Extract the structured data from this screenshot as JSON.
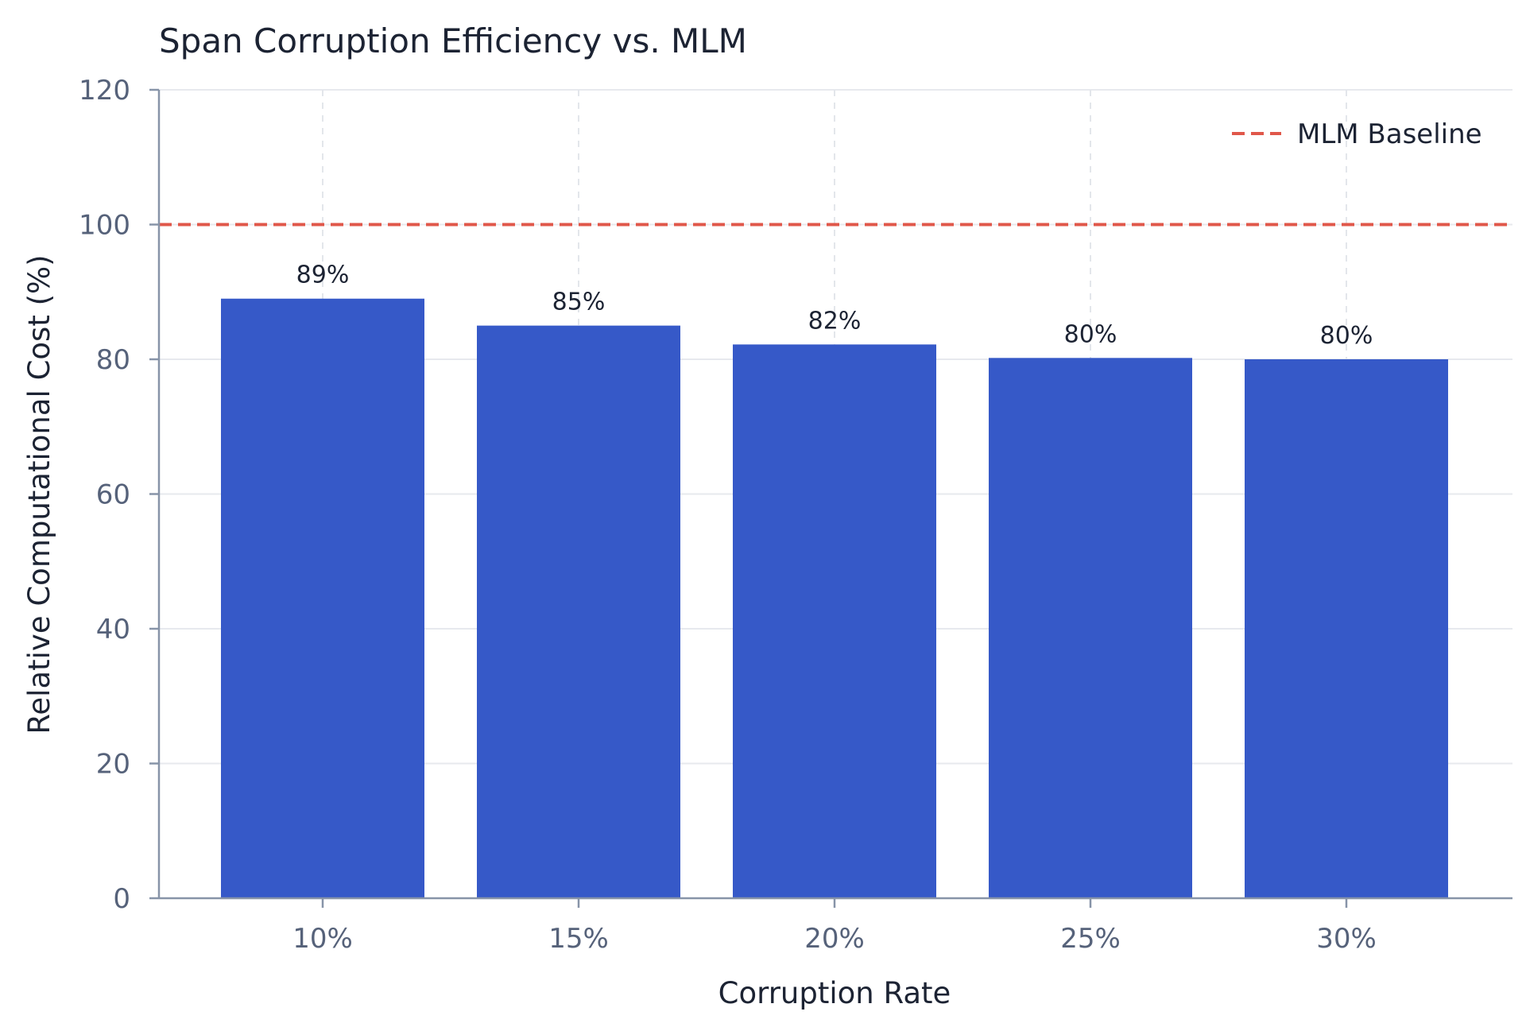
{
  "chart_data": {
    "type": "bar",
    "title": "Span Corruption Efficiency vs. MLM",
    "xlabel": "Corruption Rate",
    "ylabel": "Relative Computational Cost (%)",
    "categories": [
      "10%",
      "15%",
      "20%",
      "25%",
      "30%"
    ],
    "values": [
      89,
      85,
      82.2,
      80.2,
      80
    ],
    "data_labels": [
      "89%",
      "85%",
      "82%",
      "80%",
      "80%"
    ],
    "ylim": [
      0,
      120
    ],
    "yticks": [
      0,
      20,
      40,
      60,
      80,
      100,
      120
    ],
    "grid": true,
    "bar_color": "#3659c8",
    "reference_line": {
      "name": "MLM Baseline",
      "value": 100,
      "style": "dashed",
      "color": "#e0574a"
    },
    "legend": {
      "position": "top-right",
      "entries": [
        "MLM Baseline"
      ]
    }
  }
}
